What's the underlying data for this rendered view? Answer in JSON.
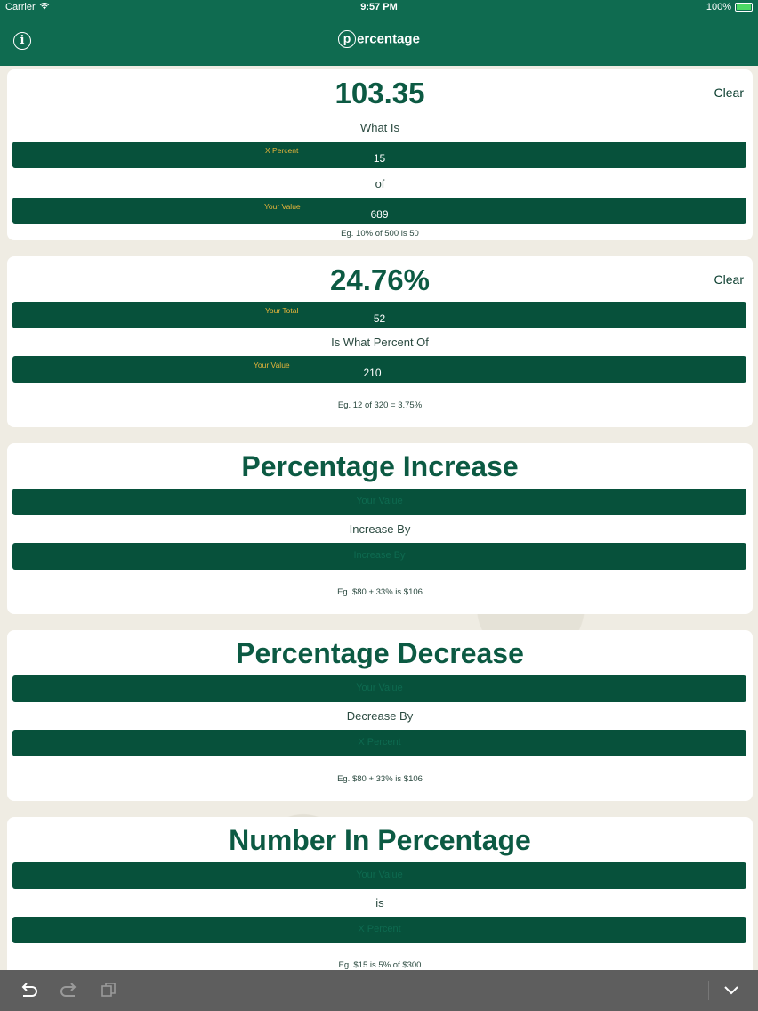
{
  "status": {
    "carrier": "Carrier",
    "time": "9:57 PM",
    "battery": "100%"
  },
  "app": {
    "logo_letter": "p",
    "logo_rest": "ercentage"
  },
  "card1": {
    "result": "103.35",
    "clear": "Clear",
    "prompt": "What Is",
    "field1": {
      "label": "X Percent",
      "value": "15"
    },
    "joiner": "of",
    "field2": {
      "label": "Your Value",
      "value": "689"
    },
    "example": "Eg. 10% of 500 is 50"
  },
  "card2": {
    "result": "24.76%",
    "clear": "Clear",
    "field1": {
      "label": "Your Total",
      "value": "52"
    },
    "prompt": "Is What Percent Of",
    "field2": {
      "label": "Your Value",
      "value": "210"
    },
    "example": "Eg. 12 of 320 = 3.75%"
  },
  "card3": {
    "title": "Percentage Increase",
    "field1_placeholder": "Your Value",
    "prompt": "Increase By",
    "field2_placeholder": "Increase By",
    "example": "Eg. $80 + 33% is $106"
  },
  "card4": {
    "title": "Percentage Decrease",
    "field1_placeholder": "Your Value",
    "prompt": "Decrease By",
    "field2_placeholder": "X Percent",
    "example": "Eg. $80 + 33% is $106"
  },
  "card5": {
    "title": "Number In Percentage",
    "field1_placeholder": "Your Value",
    "prompt": "is",
    "field2_placeholder": "X Percent",
    "example": "Eg. $15 is 5% of $300"
  },
  "icons": {
    "info": "info-icon",
    "undo": "undo-icon",
    "redo": "redo-icon",
    "paste": "paste-icon",
    "dismiss": "chevron-down-icon"
  },
  "colors": {
    "brand": "#0f6b50",
    "field": "#07513b",
    "label": "#e7b53a",
    "title": "#0c5a43"
  }
}
